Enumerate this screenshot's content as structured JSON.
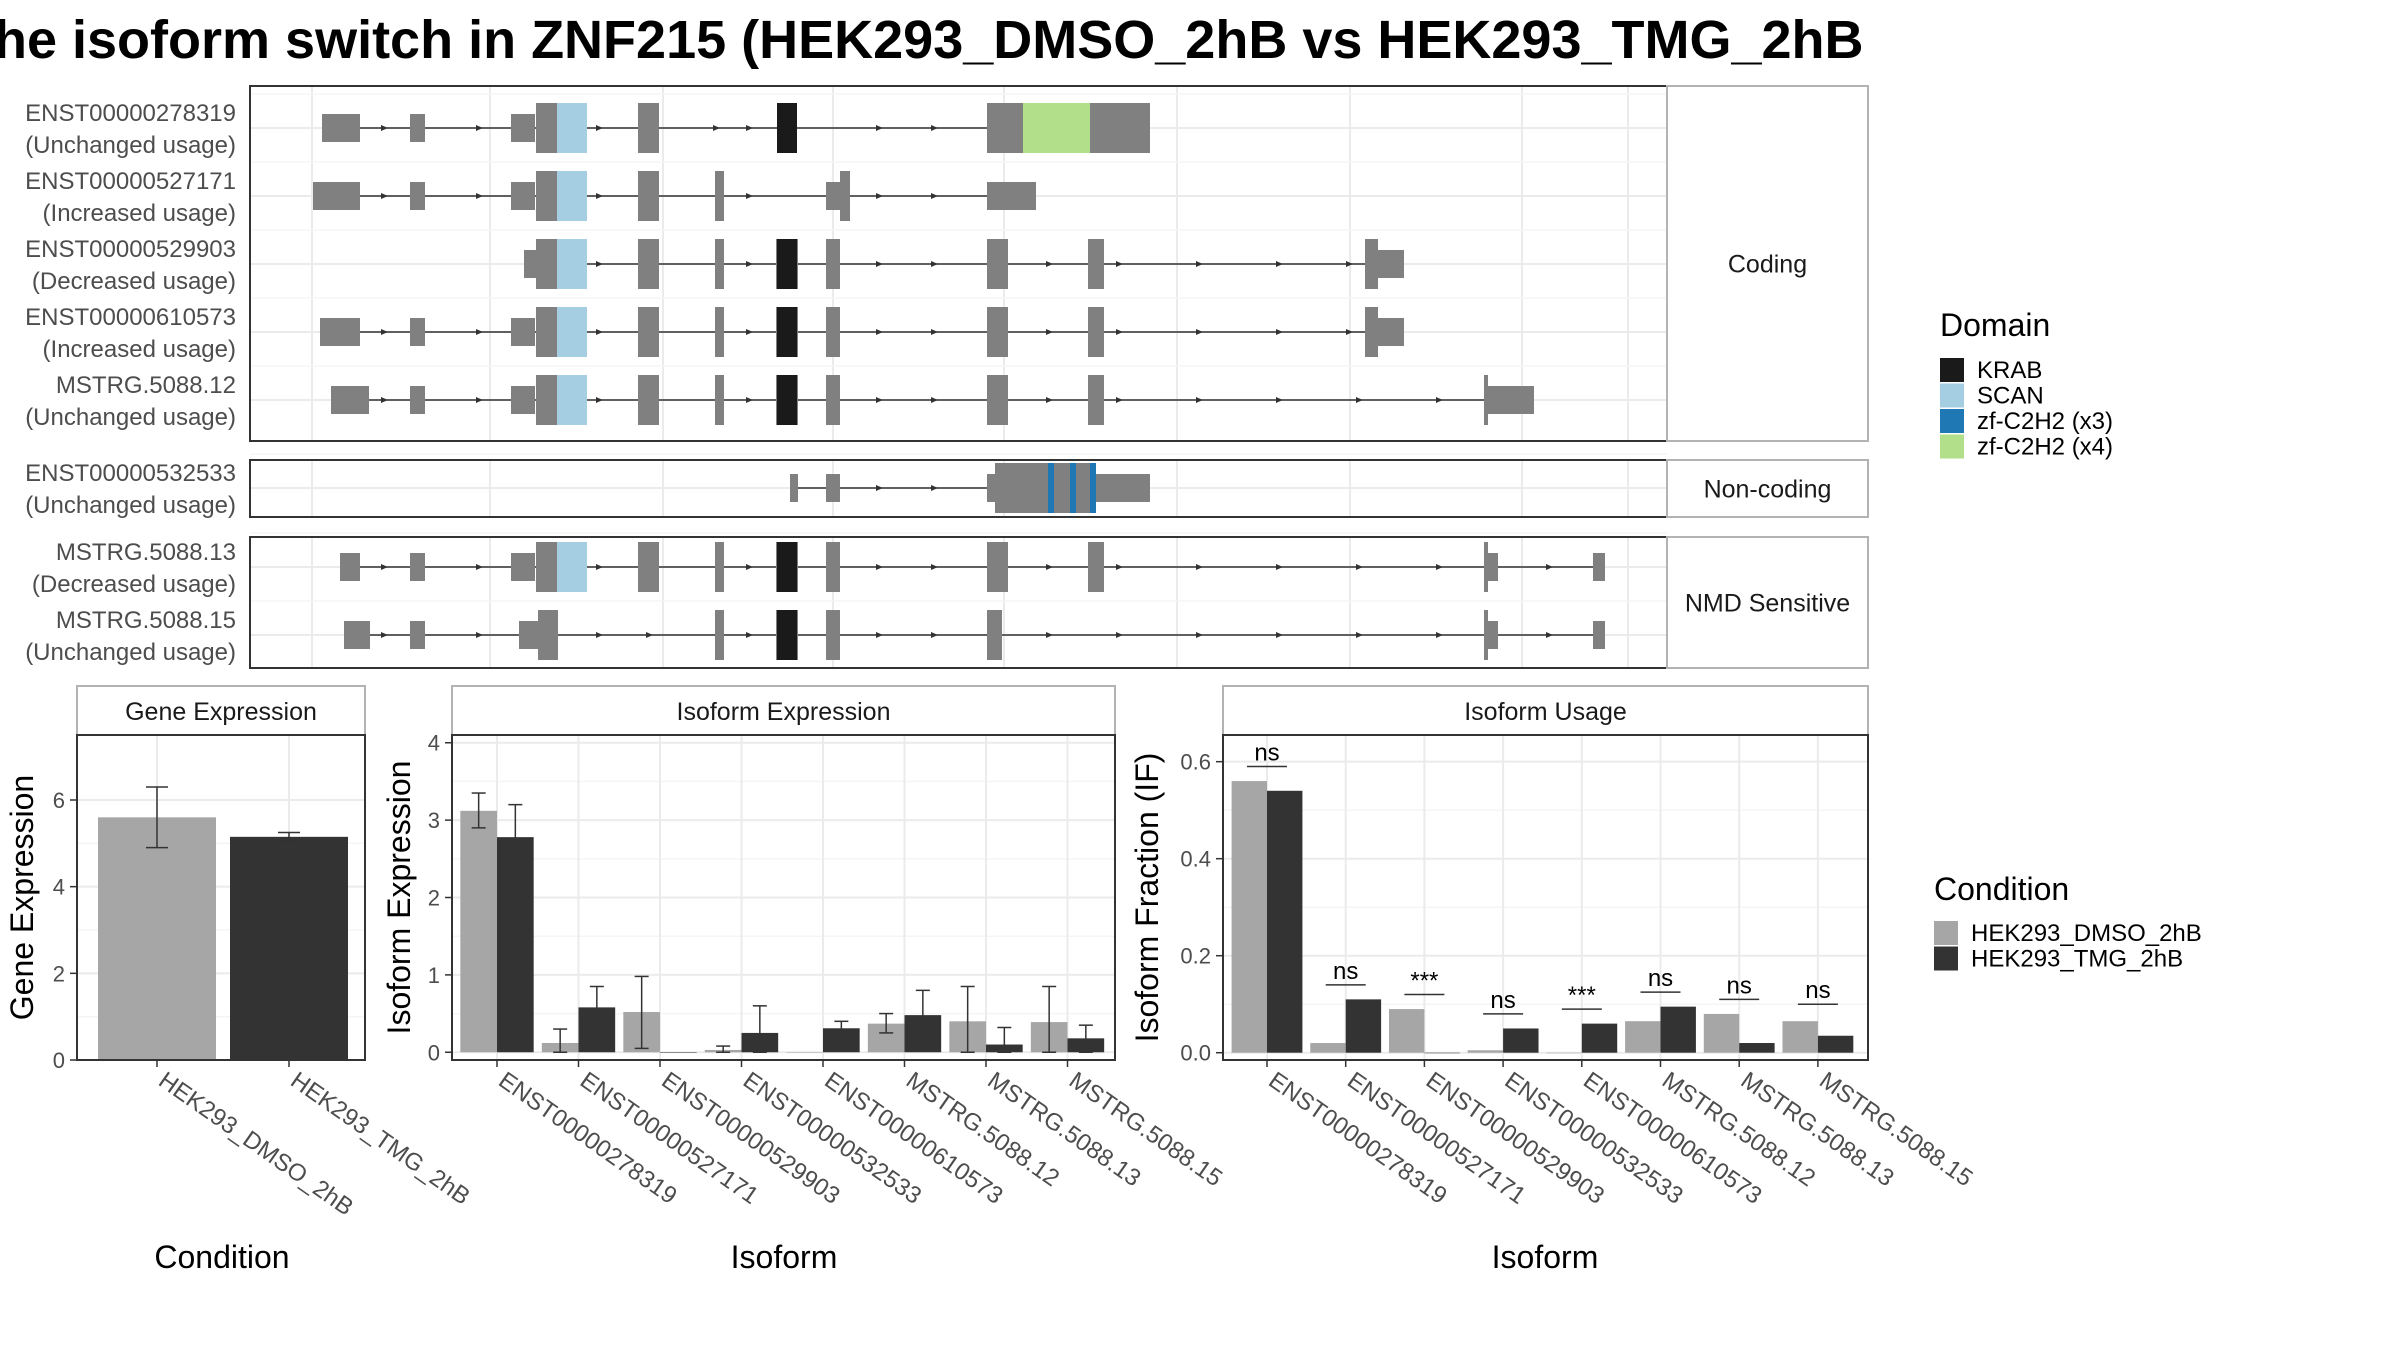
{
  "title": "he isoform switch in ZNF215 (HEK293_DMSO_2hB vs HEK293_TMG_2hB",
  "colors": {
    "KRAB": "#1a1a1a",
    "SCAN": "#a6cee3",
    "zf-C2H2 (x3)": "#1f78b4",
    "zf-C2H2 (x4)": "#b2df8a",
    "exon": "#808080",
    "HEK293_DMSO_2hB": "#a6a6a6",
    "HEK293_TMG_2hB": "#333333"
  },
  "structure": {
    "groups": [
      {
        "label": "Coding",
        "transcripts": [
          {
            "id": "ENST00000278319",
            "usage": "(Unchanged usage)"
          },
          {
            "id": "ENST00000527171",
            "usage": "(Increased usage)"
          },
          {
            "id": "ENST00000529903",
            "usage": "(Decreased usage)"
          },
          {
            "id": "ENST00000610573",
            "usage": "(Increased usage)"
          },
          {
            "id": "MSTRG.5088.12",
            "usage": "(Unchanged usage)"
          }
        ]
      },
      {
        "label": "Non-coding",
        "transcripts": [
          {
            "id": "ENST00000532533",
            "usage": "(Unchanged usage)"
          }
        ]
      },
      {
        "label": "NMD Sensitive",
        "transcripts": [
          {
            "id": "MSTRG.5088.13",
            "usage": "(Decreased usage)"
          },
          {
            "id": "MSTRG.5088.15",
            "usage": "(Unchanged usage)"
          }
        ]
      }
    ]
  },
  "legend_domain": {
    "title": "Domain",
    "items": [
      "KRAB",
      "SCAN",
      "zf-C2H2 (x3)",
      "zf-C2H2 (x4)"
    ]
  },
  "legend_condition": {
    "title": "Condition",
    "items": [
      "HEK293_DMSO_2hB",
      "HEK293_TMG_2hB"
    ]
  },
  "chart_data": [
    {
      "type": "bar",
      "title": "Gene Expression",
      "xlabel": "Condition",
      "ylabel": "Gene Expression",
      "ylim": [
        0,
        7.5
      ],
      "yticks": [
        0,
        2,
        4,
        6
      ],
      "categories": [
        "HEK293_DMSO_2hB",
        "HEK293_TMG_2hB"
      ],
      "values": [
        5.6,
        5.15
      ],
      "errors": [
        [
          4.9,
          6.3
        ],
        [
          5.05,
          5.25
        ]
      ]
    },
    {
      "type": "bar",
      "title": "Isoform Expression",
      "xlabel": "Isoform",
      "ylabel": "Isoform Expression",
      "ylim": [
        -0.1,
        4.1
      ],
      "yticks": [
        0,
        1,
        2,
        3,
        4
      ],
      "categories": [
        "ENST00000278319",
        "ENST00000527171",
        "ENST00000529903",
        "ENST00000532533",
        "ENST00000610573",
        "MSTRG.5088.12",
        "MSTRG.5088.13",
        "MSTRG.5088.15"
      ],
      "series": [
        {
          "name": "HEK293_DMSO_2hB",
          "values": [
            3.12,
            0.12,
            0.52,
            0.03,
            0.0,
            0.37,
            0.4,
            0.39
          ],
          "errors": [
            [
              2.9,
              3.35
            ],
            [
              0.0,
              0.3
            ],
            [
              0.05,
              0.98
            ],
            [
              0.0,
              0.08
            ],
            [
              0.0,
              0.0
            ],
            [
              0.25,
              0.5
            ],
            [
              0.0,
              0.85
            ],
            [
              0.0,
              0.85
            ]
          ]
        },
        {
          "name": "HEK293_TMG_2hB",
          "values": [
            2.78,
            0.58,
            0.0,
            0.25,
            0.31,
            0.48,
            0.1,
            0.18
          ],
          "errors": [
            [
              2.35,
              3.2
            ],
            [
              0.3,
              0.85
            ],
            [
              0.0,
              0.0
            ],
            [
              0.0,
              0.6
            ],
            [
              0.22,
              0.4
            ],
            [
              0.15,
              0.8
            ],
            [
              0.0,
              0.32
            ],
            [
              0.0,
              0.35
            ]
          ]
        }
      ]
    },
    {
      "type": "bar",
      "title": "Isoform Usage",
      "xlabel": "Isoform",
      "ylabel": "Isoform Fraction (IF)",
      "ylim": [
        -0.015,
        0.655
      ],
      "yticks": [
        0.0,
        0.2,
        0.4,
        0.6
      ],
      "ytick_labels": [
        "0.0",
        "0.2",
        "0.4",
        "0.6"
      ],
      "categories": [
        "ENST00000278319",
        "ENST00000527171",
        "ENST00000529903",
        "ENST00000532533",
        "ENST00000610573",
        "MSTRG.5088.12",
        "MSTRG.5088.13",
        "MSTRG.5088.15"
      ],
      "series": [
        {
          "name": "HEK293_DMSO_2hB",
          "values": [
            0.56,
            0.02,
            0.09,
            0.005,
            0.0,
            0.065,
            0.08,
            0.065
          ]
        },
        {
          "name": "HEK293_TMG_2hB",
          "values": [
            0.54,
            0.11,
            0.0,
            0.05,
            0.06,
            0.095,
            0.02,
            0.035
          ]
        }
      ],
      "significance": [
        "ns",
        "ns",
        "***",
        "ns",
        "***",
        "ns",
        "ns",
        "ns"
      ],
      "significance_y": [
        0.59,
        0.14,
        0.12,
        0.08,
        0.09,
        0.125,
        0.11,
        0.1
      ]
    }
  ]
}
